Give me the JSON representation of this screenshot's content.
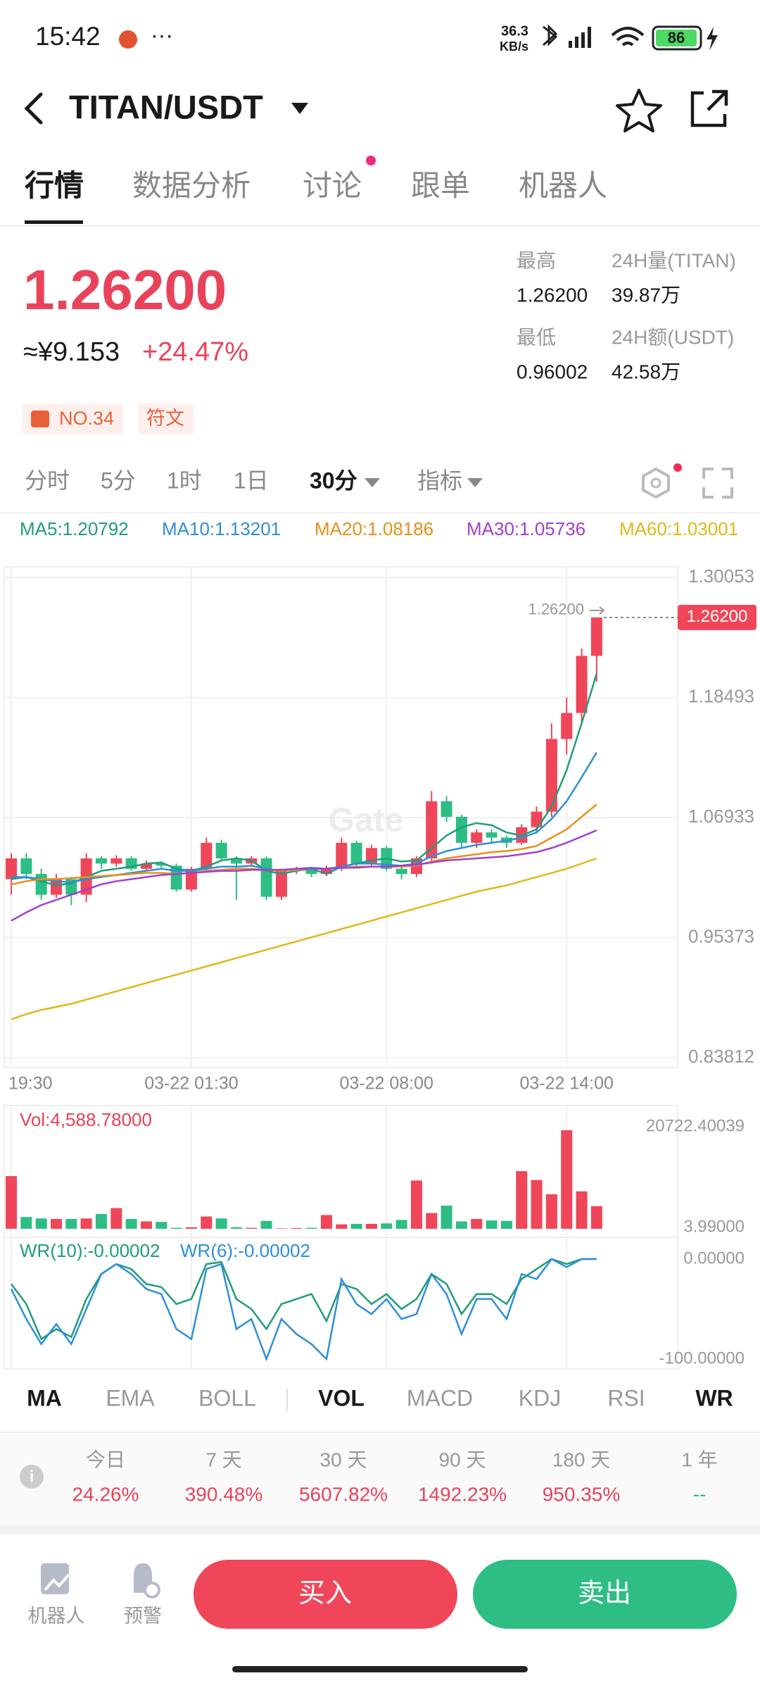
{
  "status_bar": {
    "time": "15:42",
    "dots": "···",
    "net_speed": "36.3",
    "net_unit": "KB/s",
    "battery": "86"
  },
  "header": {
    "title": "TITAN/USDT"
  },
  "tabs": [
    "行情",
    "数据分析",
    "讨论",
    "跟单",
    "机器人"
  ],
  "ticker": {
    "price": "1.26200",
    "cny": "≈¥9.153",
    "change": "+24.47%"
  },
  "stats": [
    {
      "label": "最高",
      "value": "1.26200"
    },
    {
      "label": "24H量(TITAN)",
      "value": "39.87万"
    },
    {
      "label": "最低",
      "value": "0.96002"
    },
    {
      "label": "24H额(USDT)",
      "value": "42.58万"
    }
  ],
  "badges": [
    "NO.34",
    "符文"
  ],
  "intervals": [
    "分时",
    "5分",
    "1时",
    "1日",
    "30分",
    "指标"
  ],
  "chart_data": [
    {
      "type": "candlestick",
      "watermark": "Gate",
      "categories": [
        "19:30",
        null,
        null,
        null,
        null,
        null,
        null,
        null,
        null,
        null,
        null,
        null,
        "03-22 01:30",
        null,
        null,
        null,
        null,
        null,
        null,
        null,
        null,
        null,
        null,
        null,
        null,
        "03-22 08:00",
        null,
        null,
        null,
        null,
        null,
        null,
        null,
        null,
        null,
        null,
        null,
        "03-22 14:00",
        null,
        null
      ],
      "open": [
        1.01,
        1.03,
        1.015,
        0.995,
        1.01,
        0.995,
        1.03,
        1.025,
        1.03,
        1.02,
        1.025,
        1.023,
        1.0,
        1.02,
        1.045,
        1.03,
        1.025,
        1.03,
        0.993,
        1.018,
        1.02,
        1.015,
        1.02,
        1.045,
        1.025,
        1.04,
        1.02,
        1.015,
        1.03,
        1.085,
        1.07,
        1.045,
        1.055,
        1.05,
        1.045,
        1.06,
        1.075,
        1.145,
        1.17,
        1.225
      ],
      "high": [
        1.035,
        1.035,
        1.02,
        1.015,
        1.012,
        1.035,
        1.032,
        1.033,
        1.032,
        1.028,
        1.027,
        1.025,
        1.022,
        1.05,
        1.048,
        1.032,
        1.032,
        1.032,
        1.02,
        1.022,
        1.022,
        1.023,
        1.05,
        1.047,
        1.043,
        1.042,
        1.022,
        1.032,
        1.095,
        1.09,
        1.072,
        1.058,
        1.058,
        1.052,
        1.063,
        1.08,
        1.16,
        1.185,
        1.232,
        1.262
      ],
      "low": [
        0.995,
        1.01,
        0.99,
        0.992,
        0.985,
        0.988,
        1.02,
        1.022,
        1.018,
        1.018,
        1.02,
        0.998,
        0.998,
        1.018,
        1.028,
        0.99,
        1.022,
        0.99,
        0.99,
        1.015,
        1.012,
        1.013,
        1.018,
        1.022,
        1.022,
        1.018,
        1.01,
        1.012,
        1.025,
        1.065,
        1.04,
        1.04,
        1.045,
        1.04,
        1.043,
        1.055,
        1.07,
        1.13,
        1.16,
        1.2
      ],
      "close": [
        1.03,
        1.015,
        0.995,
        1.01,
        0.995,
        1.03,
        1.025,
        1.03,
        1.02,
        1.025,
        1.023,
        1.0,
        1.02,
        1.045,
        1.03,
        1.025,
        1.03,
        0.993,
        1.018,
        1.02,
        1.015,
        1.02,
        1.045,
        1.025,
        1.04,
        1.02,
        1.015,
        1.03,
        1.085,
        1.07,
        1.045,
        1.055,
        1.05,
        1.045,
        1.06,
        1.075,
        1.145,
        1.17,
        1.225,
        1.262
      ],
      "up_color": "#f0465a",
      "down_color": "#2ebd85",
      "ylim": [
        0.83812,
        1.30053
      ],
      "yticks": [
        1.30053,
        1.18493,
        1.06933,
        0.95373,
        0.83812
      ],
      "grid": true,
      "last_price_label": "1.26200",
      "high_label": "1.26200",
      "series": [
        {
          "name": "MA5:1.20792",
          "color": "#1f9e78",
          "values": [
            1.01,
            1.012,
            1.008,
            1.004,
            1.006,
            1.012,
            1.018,
            1.02,
            1.022,
            1.025,
            1.026,
            1.02,
            1.018,
            1.022,
            1.028,
            1.03,
            1.028,
            1.018,
            1.015,
            1.018,
            1.02,
            1.015,
            1.022,
            1.025,
            1.028,
            1.03,
            1.027,
            1.028,
            1.04,
            1.052,
            1.06,
            1.064,
            1.062,
            1.055,
            1.052,
            1.058,
            1.08,
            1.115,
            1.16,
            1.208
          ]
        },
        {
          "name": "MA10:1.13201",
          "color": "#2f8fd8",
          "values": [
            1.012,
            1.012,
            1.01,
            1.008,
            1.007,
            1.01,
            1.012,
            1.014,
            1.016,
            1.018,
            1.02,
            1.018,
            1.018,
            1.02,
            1.022,
            1.022,
            1.023,
            1.02,
            1.018,
            1.02,
            1.021,
            1.02,
            1.022,
            1.025,
            1.025,
            1.024,
            1.023,
            1.025,
            1.032,
            1.037,
            1.04,
            1.043,
            1.045,
            1.047,
            1.05,
            1.055,
            1.068,
            1.085,
            1.108,
            1.132
          ]
        },
        {
          "name": "MA20:1.08186",
          "color": "#e88f1b",
          "values": [
            1.005,
            1.008,
            1.01,
            1.01,
            1.011,
            1.012,
            1.013,
            1.014,
            1.015,
            1.016,
            1.016,
            1.015,
            1.016,
            1.018,
            1.019,
            1.02,
            1.02,
            1.019,
            1.018,
            1.019,
            1.02,
            1.02,
            1.021,
            1.022,
            1.022,
            1.022,
            1.022,
            1.023,
            1.027,
            1.03,
            1.032,
            1.034,
            1.036,
            1.037,
            1.039,
            1.042,
            1.05,
            1.058,
            1.07,
            1.082
          ]
        },
        {
          "name": "MA30:1.05736",
          "color": "#a33fcf",
          "values": [
            0.97,
            0.978,
            0.985,
            0.99,
            0.995,
            1.0,
            1.005,
            1.008,
            1.01,
            1.012,
            1.014,
            1.015,
            1.016,
            1.017,
            1.018,
            1.018,
            1.019,
            1.019,
            1.019,
            1.02,
            1.02,
            1.02,
            1.021,
            1.021,
            1.022,
            1.022,
            1.023,
            1.024,
            1.026,
            1.028,
            1.029,
            1.03,
            1.031,
            1.032,
            1.034,
            1.036,
            1.04,
            1.045,
            1.051,
            1.057
          ]
        },
        {
          "name": "MA60:1.03001",
          "color": "#e0b81a",
          "values": [
            0.875,
            0.88,
            0.884,
            0.887,
            0.89,
            0.894,
            0.898,
            0.902,
            0.906,
            0.91,
            0.914,
            0.918,
            0.922,
            0.926,
            0.93,
            0.934,
            0.938,
            0.942,
            0.946,
            0.95,
            0.954,
            0.958,
            0.962,
            0.966,
            0.97,
            0.974,
            0.978,
            0.982,
            0.986,
            0.99,
            0.994,
            0.998,
            1.001,
            1.004,
            1.008,
            1.012,
            1.016,
            1.02,
            1.025,
            1.03
          ]
        }
      ]
    },
    {
      "type": "bar",
      "title": "Vol:4,588.78000",
      "values": [
        10700,
        2400,
        2100,
        2000,
        2000,
        2100,
        3000,
        4200,
        2000,
        1500,
        1400,
        200,
        300,
        2500,
        2100,
        300,
        200,
        1600,
        100,
        150,
        200,
        2800,
        900,
        1000,
        1000,
        1100,
        1800,
        9800,
        3200,
        4700,
        1500,
        2000,
        1700,
        1600,
        11700,
        9900,
        7000,
        20000,
        7600,
        4588.78
      ],
      "ylim": [
        3.99,
        20722.40039
      ],
      "yticks": [
        20722.40039,
        {
          "value": 3.99,
          "label": "3.99000"
        }
      ],
      "grid": false
    },
    {
      "type": "line",
      "ylim": [
        -100,
        0
      ],
      "yticks": [
        {
          "value": 0,
          "label": "0.00000"
        },
        {
          "value": -100,
          "label": "-100.00000"
        }
      ],
      "grid": false,
      "series": [
        {
          "name": "WR(10):-0.00002",
          "color": "#1f9e78",
          "values": [
            -25,
            -45,
            -80,
            -70,
            -78,
            -40,
            -15,
            -5,
            -10,
            -25,
            -28,
            -45,
            -40,
            -5,
            -3,
            -40,
            -50,
            -70,
            -45,
            -40,
            -35,
            -62,
            -25,
            -30,
            -45,
            -35,
            -50,
            -40,
            -15,
            -25,
            -55,
            -35,
            -35,
            -45,
            -20,
            -10,
            0,
            -5,
            0,
            -2e-05
          ]
        },
        {
          "name": "WR(6):-0.00002",
          "color": "#2f8fd8",
          "values": [
            -30,
            -60,
            -85,
            -65,
            -85,
            -50,
            -15,
            -5,
            -15,
            -30,
            -35,
            -70,
            -80,
            -10,
            -5,
            -70,
            -60,
            -100,
            -60,
            -75,
            -85,
            -100,
            -20,
            -45,
            -55,
            -40,
            -60,
            -55,
            -15,
            -35,
            -75,
            -40,
            -40,
            -60,
            -15,
            -20,
            0,
            -8,
            0,
            -2e-05
          ]
        }
      ]
    }
  ],
  "indicator_tabs": [
    "MA",
    "EMA",
    "BOLL",
    "VOL",
    "MACD",
    "KDJ",
    "RSI",
    "WR"
  ],
  "returns": [
    {
      "period": "今日",
      "value": "24.26%"
    },
    {
      "period": "7 天",
      "value": "390.48%"
    },
    {
      "period": "30 天",
      "value": "5607.82%"
    },
    {
      "period": "90 天",
      "value": "1492.23%"
    },
    {
      "period": "180 天",
      "value": "950.35%"
    },
    {
      "period": "1 年",
      "value": "--"
    }
  ],
  "bottom_bar": {
    "robot": "机器人",
    "alert": "预警",
    "buy": "买入",
    "sell": "卖出"
  }
}
